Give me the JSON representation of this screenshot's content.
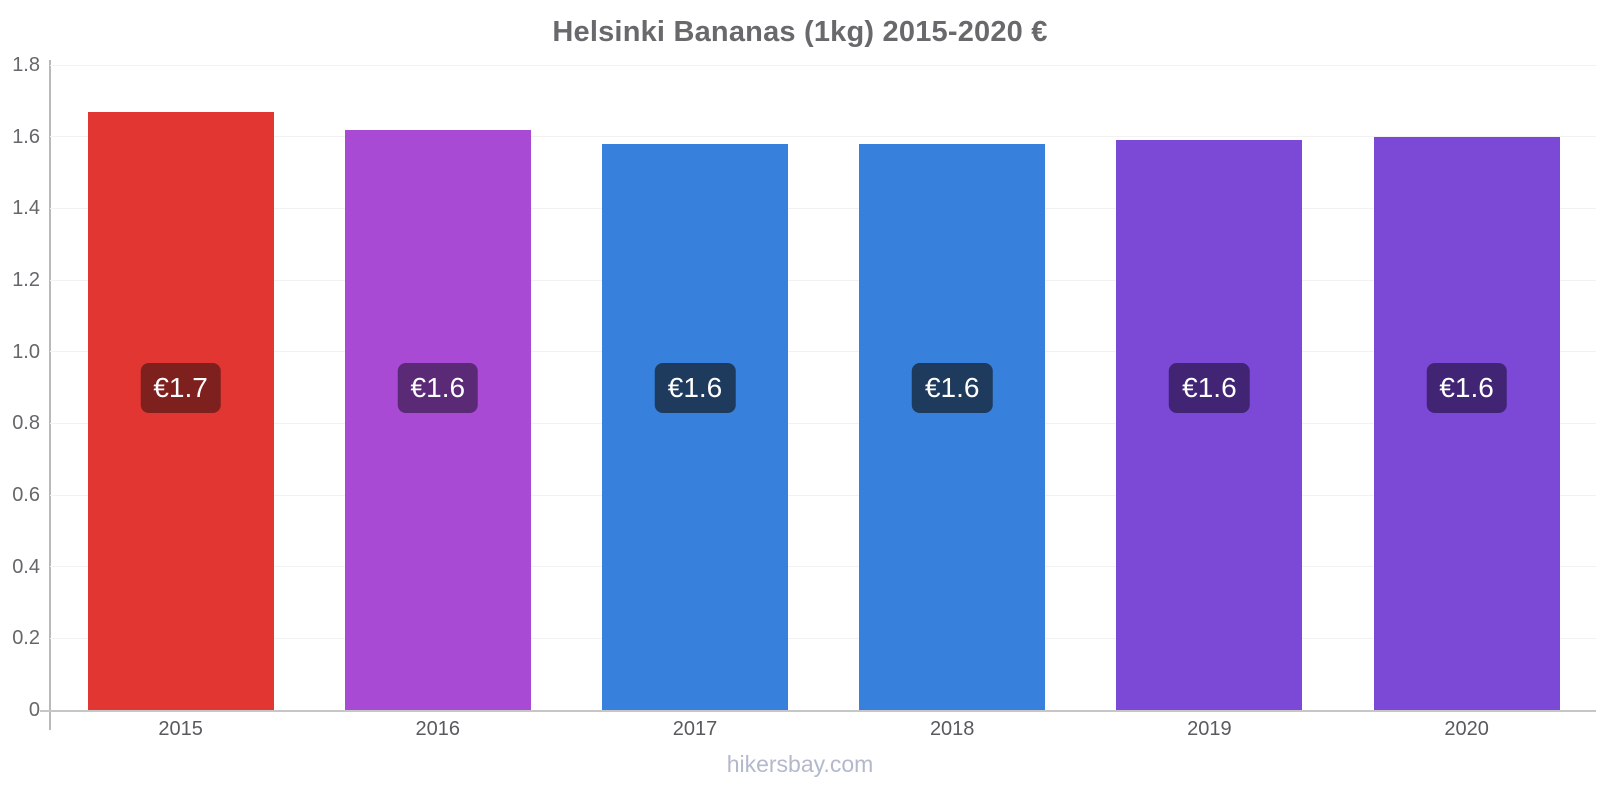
{
  "title": "Helsinki Bananas (1kg) 2015-2020 €",
  "footer": "hikersbay.com",
  "chart_data": {
    "type": "bar",
    "title": "Helsinki Bananas (1kg) 2015-2020 €",
    "categories": [
      "2015",
      "2016",
      "2017",
      "2018",
      "2019",
      "2020"
    ],
    "values": [
      1.67,
      1.62,
      1.58,
      1.58,
      1.59,
      1.6
    ],
    "bar_labels": [
      "€1.7",
      "€1.6",
      "€1.6",
      "€1.6",
      "€1.6",
      "€1.6"
    ],
    "bar_colors": [
      "#e23632",
      "#a94ad4",
      "#3781dc",
      "#3781dc",
      "#7c48d6",
      "#7c48d6"
    ],
    "badge_colors": [
      "#7d201e",
      "#5b2a77",
      "#1e3a5c",
      "#1e3a5c",
      "#422474",
      "#422474"
    ],
    "xlabel": "",
    "ylabel": "",
    "ylim": [
      0,
      1.8
    ],
    "yticks": [
      "0",
      "0.2",
      "0.4",
      "0.6",
      "0.8",
      "1.0",
      "1.2",
      "1.4",
      "1.6",
      "1.8"
    ],
    "grid": "horizontal-faint",
    "legend": "none",
    "currency": "€",
    "watermark": "hikersbay.com"
  }
}
